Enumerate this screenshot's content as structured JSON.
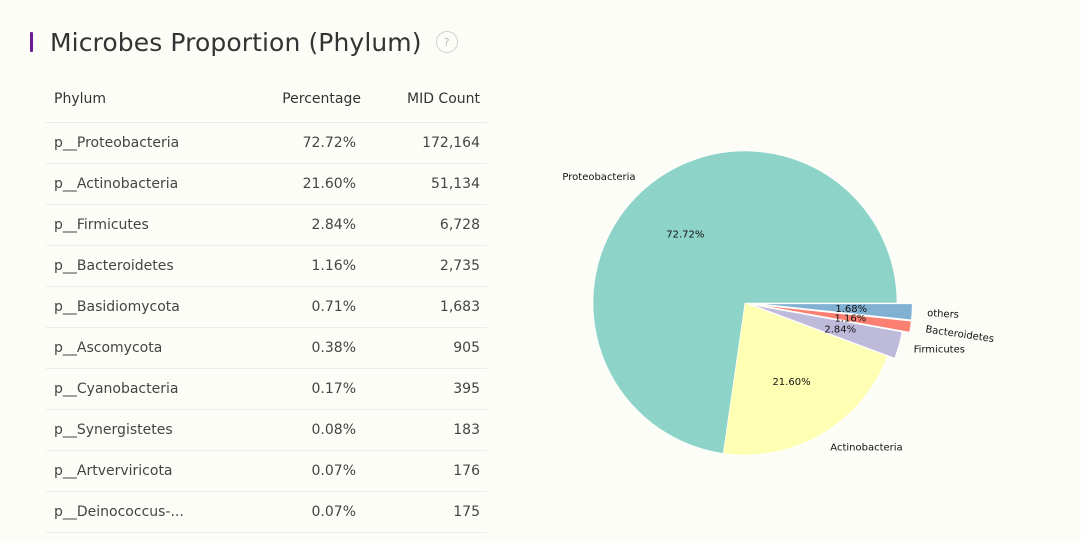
{
  "title": "Microbes Proportion (Phylum)",
  "help_icon": "question-mark-icon",
  "help_glyph": "?",
  "colors": {
    "accent": "#6a1b9a",
    "proteobacteria": "#8dd3c7",
    "actinobacteria": "#ffffb3",
    "firmicutes": "#bebada",
    "bacteroidetes": "#fb8072",
    "others": "#80b1d3"
  },
  "table": {
    "headers": [
      "Phylum",
      "Percentage",
      "MID Count"
    ],
    "rows": [
      [
        "p__Proteobacteria",
        "72.72%",
        "172,164"
      ],
      [
        "p__Actinobacteria",
        "21.60%",
        "51,134"
      ],
      [
        "p__Firmicutes",
        "2.84%",
        "6,728"
      ],
      [
        "p__Bacteroidetes",
        "1.16%",
        "2,735"
      ],
      [
        "p__Basidiomycota",
        "0.71%",
        "1,683"
      ],
      [
        "p__Ascomycota",
        "0.38%",
        "905"
      ],
      [
        "p__Cyanobacteria",
        "0.17%",
        "395"
      ],
      [
        "p__Synergistetes",
        "0.08%",
        "183"
      ],
      [
        "p__Artverviricota",
        "0.07%",
        "176"
      ],
      [
        "p__Deinococcus-...",
        "0.07%",
        "175"
      ]
    ]
  },
  "chart_data": {
    "type": "pie",
    "labels": [
      "Proteobacteria",
      "Actinobacteria",
      "Firmicutes",
      "Bacteroidetes",
      "others"
    ],
    "values": [
      72.72,
      21.6,
      2.84,
      1.16,
      1.68
    ],
    "pct_labels": [
      "72.72%",
      "21.60%",
      "2.84%",
      "1.16%",
      "1.68%"
    ],
    "colors": [
      "#8dd3c7",
      "#ffffb3",
      "#bebada",
      "#fb8072",
      "#80b1d3"
    ],
    "explode": [
      0,
      0,
      0.05,
      0.1,
      0.1
    ]
  }
}
